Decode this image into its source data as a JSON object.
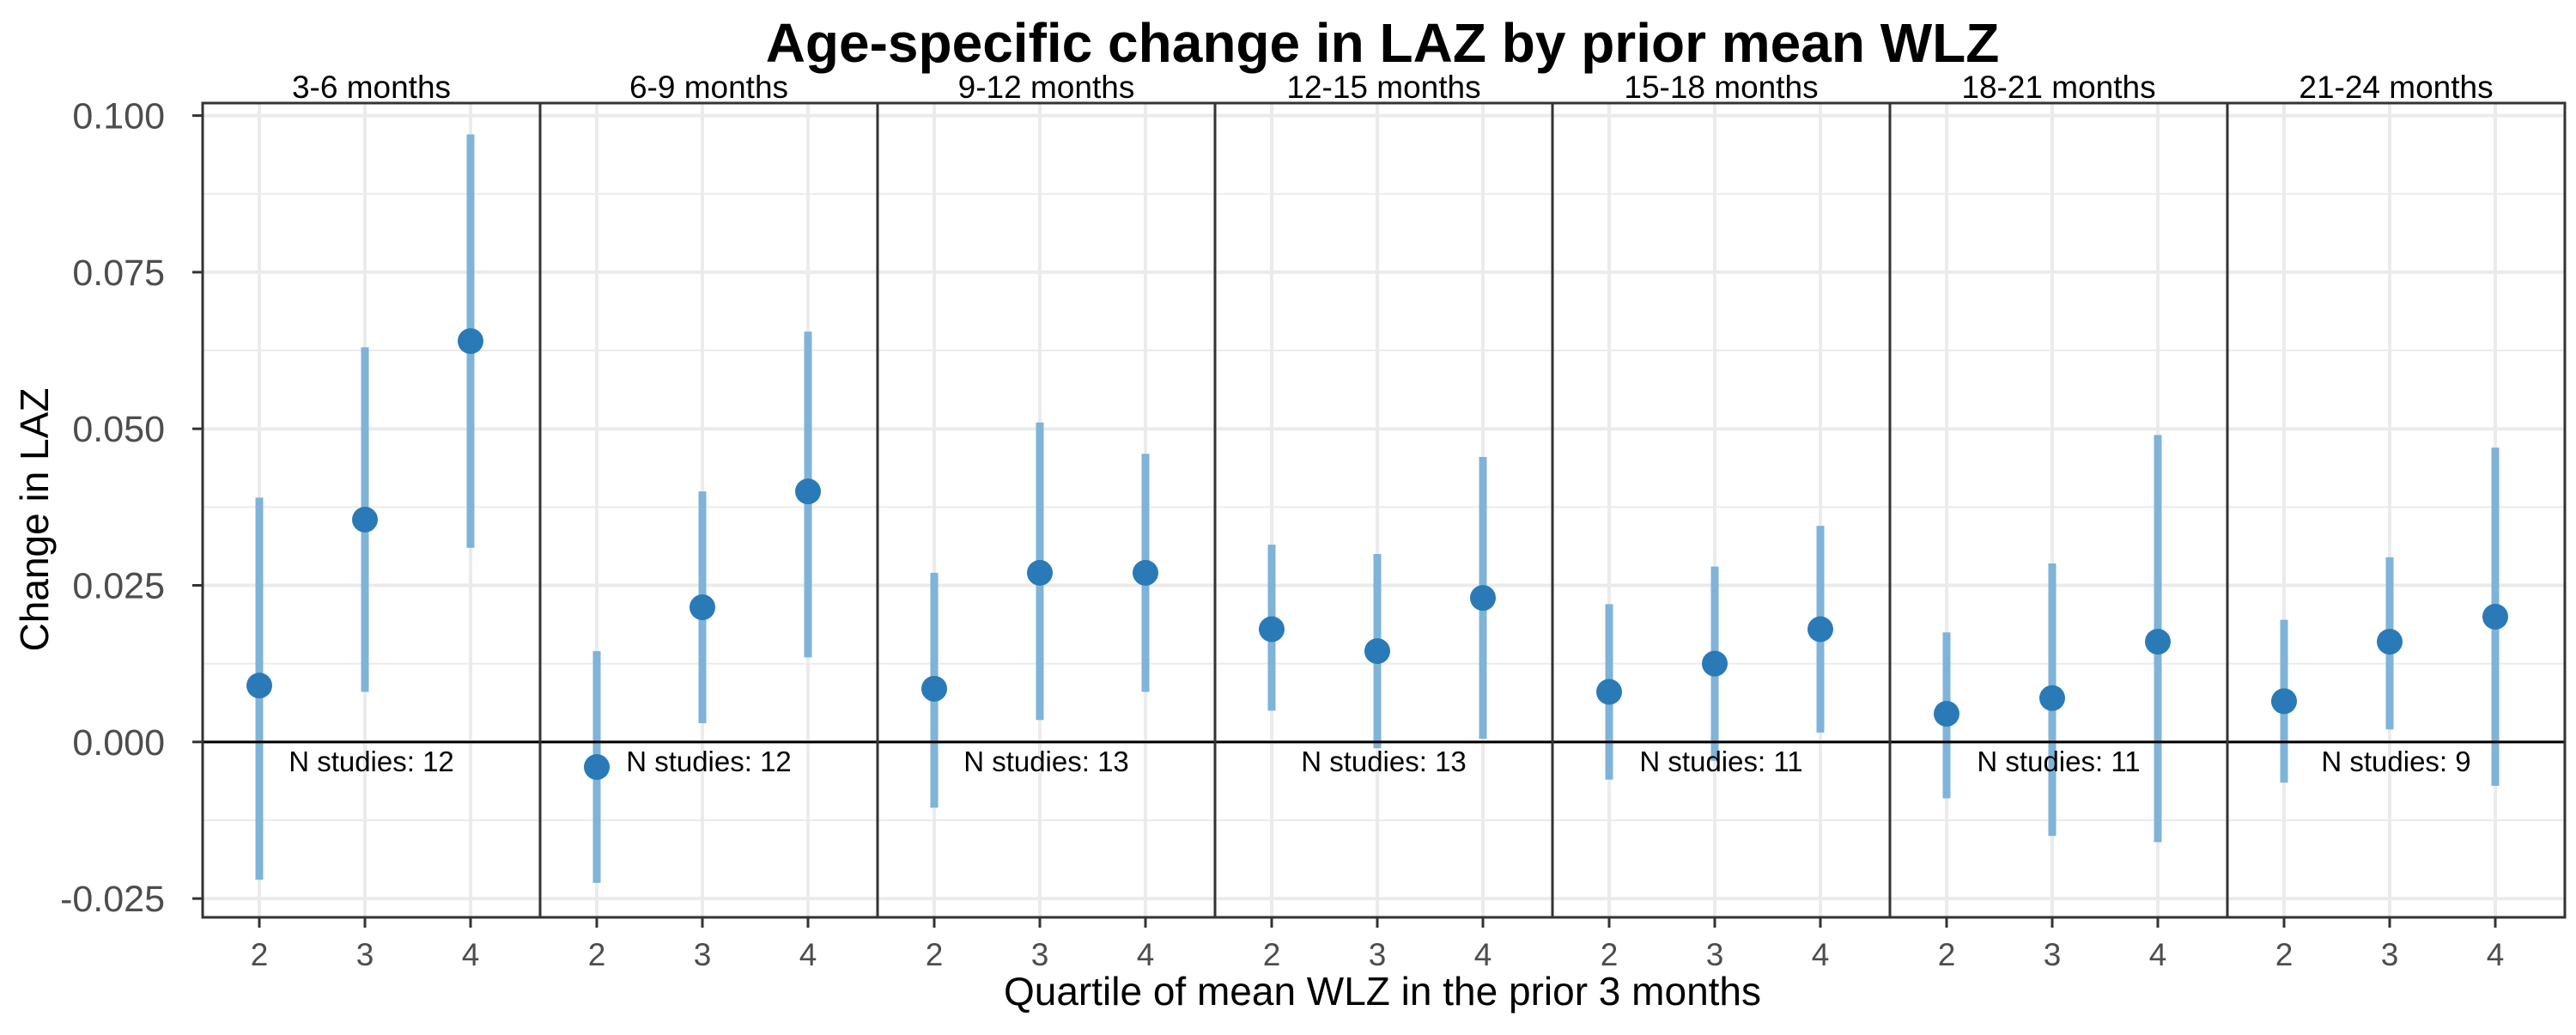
{
  "chart_data": {
    "type": "scatter",
    "title": "Age-specific change in LAZ by prior mean WLZ",
    "xlabel": "Quartile of mean WLZ in the prior 3 months",
    "ylabel": "Change in LAZ",
    "ylim": [
      -0.028,
      0.102
    ],
    "yticks": [
      "-0.025",
      "0.000",
      "0.025",
      "0.050",
      "0.075",
      "0.100"
    ],
    "ytick_values": [
      -0.025,
      0,
      0.025,
      0.05,
      0.075,
      0.1
    ],
    "x_categories": [
      "2",
      "3",
      "4"
    ],
    "grid": true,
    "reference_line": 0,
    "colors": {
      "point": "#2a7ab8",
      "errorbar": "#7fb3d8",
      "grid": "#ebebeb",
      "panel_border": "#333333"
    },
    "panels": [
      {
        "label": "3-6 months",
        "n_label": "N studies: 12",
        "points": [
          {
            "x": "2",
            "y": 0.009,
            "lower": -0.022,
            "upper": 0.039
          },
          {
            "x": "3",
            "y": 0.0355,
            "lower": 0.008,
            "upper": 0.063
          },
          {
            "x": "4",
            "y": 0.064,
            "lower": 0.031,
            "upper": 0.097
          }
        ]
      },
      {
        "label": "6-9 months",
        "n_label": "N studies: 12",
        "points": [
          {
            "x": "2",
            "y": -0.004,
            "lower": -0.0225,
            "upper": 0.0145
          },
          {
            "x": "3",
            "y": 0.0215,
            "lower": 0.003,
            "upper": 0.04
          },
          {
            "x": "4",
            "y": 0.04,
            "lower": 0.0135,
            "upper": 0.0655
          }
        ]
      },
      {
        "label": "9-12 months",
        "n_label": "N studies: 13",
        "points": [
          {
            "x": "2",
            "y": 0.0085,
            "lower": -0.0105,
            "upper": 0.027
          },
          {
            "x": "3",
            "y": 0.027,
            "lower": 0.0035,
            "upper": 0.051
          },
          {
            "x": "4",
            "y": 0.027,
            "lower": 0.008,
            "upper": 0.046
          }
        ]
      },
      {
        "label": "12-15 months",
        "n_label": "N studies: 13",
        "points": [
          {
            "x": "2",
            "y": 0.018,
            "lower": 0.005,
            "upper": 0.0315
          },
          {
            "x": "3",
            "y": 0.0145,
            "lower": -0.001,
            "upper": 0.03
          },
          {
            "x": "4",
            "y": 0.023,
            "lower": 0.0005,
            "upper": 0.0455
          }
        ]
      },
      {
        "label": "15-18 months",
        "n_label": "N studies: 11",
        "points": [
          {
            "x": "2",
            "y": 0.008,
            "lower": -0.006,
            "upper": 0.022
          },
          {
            "x": "3",
            "y": 0.0125,
            "lower": -0.003,
            "upper": 0.028
          },
          {
            "x": "4",
            "y": 0.018,
            "lower": 0.0015,
            "upper": 0.0345
          }
        ]
      },
      {
        "label": "18-21 months",
        "n_label": "N studies: 11",
        "points": [
          {
            "x": "2",
            "y": 0.0045,
            "lower": -0.009,
            "upper": 0.0175
          },
          {
            "x": "3",
            "y": 0.007,
            "lower": -0.015,
            "upper": 0.0285
          },
          {
            "x": "4",
            "y": 0.016,
            "lower": -0.016,
            "upper": 0.049
          }
        ]
      },
      {
        "label": "21-24 months",
        "n_label": "N studies: 9",
        "points": [
          {
            "x": "2",
            "y": 0.0065,
            "lower": -0.0065,
            "upper": 0.0195
          },
          {
            "x": "3",
            "y": 0.016,
            "lower": 0.002,
            "upper": 0.0295
          },
          {
            "x": "4",
            "y": 0.02,
            "lower": -0.007,
            "upper": 0.047
          }
        ]
      }
    ]
  }
}
